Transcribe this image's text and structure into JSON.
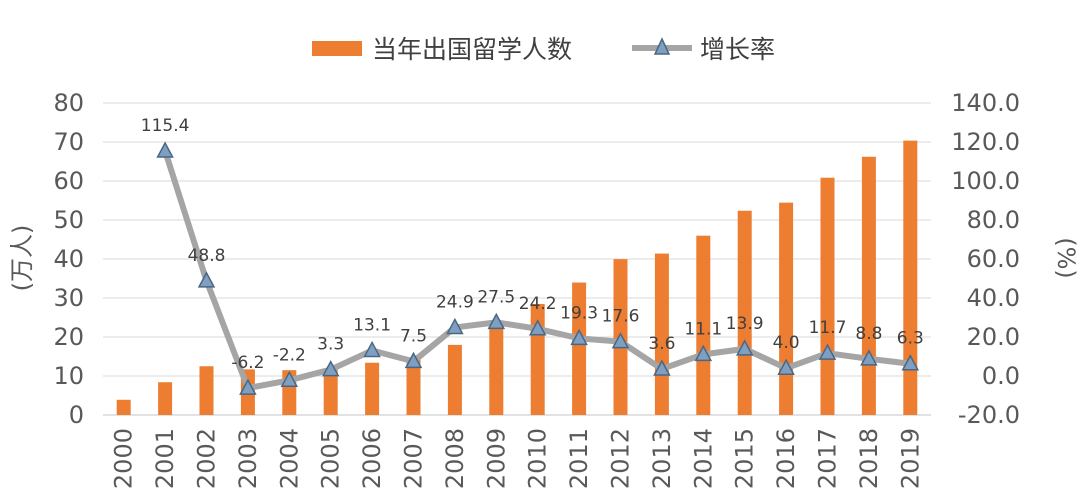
{
  "colors": {
    "bar": "#ED7D31",
    "line": "#A5A5A5",
    "marker_fill": "#7E9FC0",
    "marker_stroke": "#4A6685",
    "grid": "#D9D9D9",
    "text": "#595959"
  },
  "chart_data": {
    "type": "bar+line",
    "categories": [
      "2000",
      "2001",
      "2002",
      "2003",
      "2004",
      "2005",
      "2006",
      "2007",
      "2008",
      "2009",
      "2010",
      "2011",
      "2012",
      "2013",
      "2014",
      "2015",
      "2016",
      "2017",
      "2018",
      "2019"
    ],
    "series": [
      {
        "name": "当年出国留学人数",
        "type": "bar",
        "axis": "left",
        "values": [
          3.9,
          8.4,
          12.5,
          11.7,
          11.5,
          11.9,
          13.4,
          14.4,
          17.98,
          22.93,
          28.47,
          33.97,
          39.96,
          41.39,
          45.98,
          52.37,
          54.45,
          60.84,
          66.21,
          70.35
        ]
      },
      {
        "name": "增长率",
        "type": "line",
        "axis": "right",
        "values": [
          null,
          115.4,
          48.8,
          -6.2,
          -2.2,
          3.3,
          13.1,
          7.5,
          24.9,
          27.5,
          24.2,
          19.3,
          17.6,
          3.6,
          11.1,
          13.9,
          4.0,
          11.7,
          8.8,
          6.3
        ],
        "labels": [
          "",
          "115.4",
          "48.8",
          "-6.2",
          "-2.2",
          "3.3",
          "13.1",
          "7.5",
          "24.9",
          "27.5",
          "24.2",
          "19.3",
          "17.6",
          "3.6",
          "11.1",
          "13.9",
          "4.0",
          "11.7",
          "8.8",
          "6.3"
        ]
      }
    ],
    "y_left": {
      "label": "(万人)",
      "ylim": [
        0,
        80
      ],
      "ticks": [
        "0",
        "10",
        "20",
        "30",
        "40",
        "50",
        "60",
        "70",
        "80"
      ]
    },
    "y_right": {
      "label": "(%)",
      "ylim": [
        -20,
        140
      ],
      "ticks": [
        "-20.0",
        "0.0",
        "20.0",
        "40.0",
        "60.0",
        "80.0",
        "100.0",
        "120.0",
        "140.0"
      ]
    },
    "legend": {
      "position": "top",
      "bar_label": "当年出国留学人数",
      "line_label": "增长率"
    }
  }
}
